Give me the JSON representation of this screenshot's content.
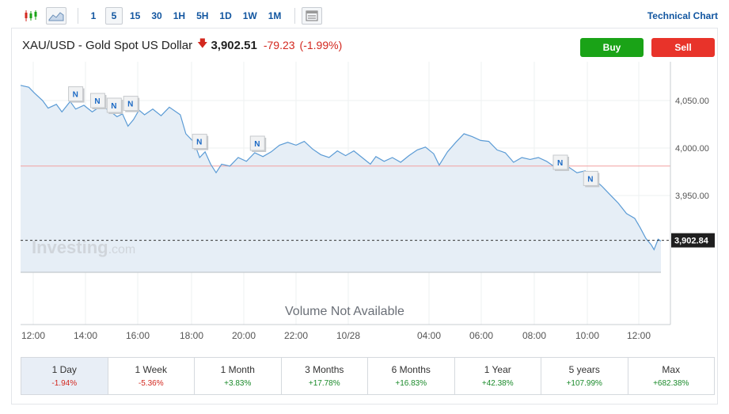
{
  "toolbar": {
    "chart_type_icons": [
      "candlestick-icon",
      "area-chart-icon"
    ],
    "intervals": [
      "1",
      "5",
      "15",
      "30",
      "1H",
      "5H",
      "1D",
      "1W",
      "1M"
    ],
    "active_interval": "5",
    "table_icon": "table-icon",
    "technical_chart_label": "Technical Chart"
  },
  "header": {
    "instrument": "XAU/USD - Gold Spot US Dollar",
    "price": "3,902.51",
    "change": "-79.23",
    "change_pct": "(-1.99%)",
    "buy_label": "Buy",
    "sell_label": "Sell"
  },
  "chart_data": {
    "type": "area",
    "y_ticks": [
      "4,050.00",
      "4,000.00",
      "3,950.00"
    ],
    "current_price_label": "3,902.84",
    "watermark": "Investing",
    "watermark_suffix": ".com",
    "news_marker_label": "N",
    "volume_label": "Volume Not Available",
    "x_ticks": [
      "12:00",
      "14:00",
      "16:00",
      "18:00",
      "20:00",
      "22:00",
      "10/28",
      "04:00",
      "06:00",
      "08:00",
      "10:00",
      "12:00"
    ],
    "ylim": [
      3880,
      4080
    ],
    "reference_line": 3981,
    "current_price": 3902.84,
    "series": [
      {
        "x": 0,
        "y": 4066
      },
      {
        "x": 0.3,
        "y": 4064
      },
      {
        "x": 0.5,
        "y": 4058
      },
      {
        "x": 0.8,
        "y": 4050
      },
      {
        "x": 1.0,
        "y": 4042
      },
      {
        "x": 1.3,
        "y": 4046
      },
      {
        "x": 1.5,
        "y": 4038
      },
      {
        "x": 1.8,
        "y": 4049
      },
      {
        "x": 2.0,
        "y": 4041
      },
      {
        "x": 2.3,
        "y": 4045
      },
      {
        "x": 2.6,
        "y": 4038
      },
      {
        "x": 2.9,
        "y": 4044
      },
      {
        "x": 3.2,
        "y": 4040
      },
      {
        "x": 3.5,
        "y": 4033
      },
      {
        "x": 3.7,
        "y": 4036
      },
      {
        "x": 3.9,
        "y": 4023
      },
      {
        "x": 4.1,
        "y": 4030
      },
      {
        "x": 4.3,
        "y": 4040
      },
      {
        "x": 4.5,
        "y": 4035
      },
      {
        "x": 4.8,
        "y": 4041
      },
      {
        "x": 5.1,
        "y": 4034
      },
      {
        "x": 5.4,
        "y": 4043
      },
      {
        "x": 5.8,
        "y": 4035
      },
      {
        "x": 6.0,
        "y": 4015
      },
      {
        "x": 6.3,
        "y": 4006
      },
      {
        "x": 6.5,
        "y": 3990
      },
      {
        "x": 6.7,
        "y": 3996
      },
      {
        "x": 6.9,
        "y": 3983
      },
      {
        "x": 7.1,
        "y": 3974
      },
      {
        "x": 7.3,
        "y": 3983
      },
      {
        "x": 7.6,
        "y": 3981
      },
      {
        "x": 7.9,
        "y": 3990
      },
      {
        "x": 8.2,
        "y": 3986
      },
      {
        "x": 8.5,
        "y": 3995
      },
      {
        "x": 8.8,
        "y": 3991
      },
      {
        "x": 9.1,
        "y": 3996
      },
      {
        "x": 9.4,
        "y": 4003
      },
      {
        "x": 9.7,
        "y": 4006
      },
      {
        "x": 10.0,
        "y": 4003
      },
      {
        "x": 10.3,
        "y": 4007
      },
      {
        "x": 10.6,
        "y": 3999
      },
      {
        "x": 10.9,
        "y": 3993
      },
      {
        "x": 11.2,
        "y": 3990
      },
      {
        "x": 11.5,
        "y": 3997
      },
      {
        "x": 11.8,
        "y": 3992
      },
      {
        "x": 12.1,
        "y": 3997
      },
      {
        "x": 12.4,
        "y": 3990
      },
      {
        "x": 12.7,
        "y": 3983
      },
      {
        "x": 12.9,
        "y": 3991
      },
      {
        "x": 13.2,
        "y": 3986
      },
      {
        "x": 13.5,
        "y": 3990
      },
      {
        "x": 13.8,
        "y": 3985
      },
      {
        "x": 14.1,
        "y": 3992
      },
      {
        "x": 14.4,
        "y": 3998
      },
      {
        "x": 14.7,
        "y": 4001
      },
      {
        "x": 15.0,
        "y": 3994
      },
      {
        "x": 15.2,
        "y": 3982
      },
      {
        "x": 15.5,
        "y": 3996
      },
      {
        "x": 15.8,
        "y": 4006
      },
      {
        "x": 16.1,
        "y": 4015
      },
      {
        "x": 16.4,
        "y": 4012
      },
      {
        "x": 16.7,
        "y": 4008
      },
      {
        "x": 17.0,
        "y": 4007
      },
      {
        "x": 17.3,
        "y": 3998
      },
      {
        "x": 17.6,
        "y": 3995
      },
      {
        "x": 17.9,
        "y": 3985
      },
      {
        "x": 18.2,
        "y": 3990
      },
      {
        "x": 18.5,
        "y": 3988
      },
      {
        "x": 18.8,
        "y": 3990
      },
      {
        "x": 19.1,
        "y": 3986
      },
      {
        "x": 19.4,
        "y": 3980
      },
      {
        "x": 19.6,
        "y": 3977
      },
      {
        "x": 19.9,
        "y": 3980
      },
      {
        "x": 20.2,
        "y": 3974
      },
      {
        "x": 20.5,
        "y": 3976
      },
      {
        "x": 20.8,
        "y": 3968
      },
      {
        "x": 21.1,
        "y": 3960
      },
      {
        "x": 21.4,
        "y": 3951
      },
      {
        "x": 21.7,
        "y": 3942
      },
      {
        "x": 22.0,
        "y": 3931
      },
      {
        "x": 22.3,
        "y": 3926
      },
      {
        "x": 22.5,
        "y": 3916
      },
      {
        "x": 22.7,
        "y": 3905
      },
      {
        "x": 22.9,
        "y": 3898
      },
      {
        "x": 23.0,
        "y": 3893
      },
      {
        "x": 23.15,
        "y": 3904
      },
      {
        "x": 23.25,
        "y": 3902
      }
    ],
    "news_markers": [
      {
        "x": 2.0,
        "y": 4057
      },
      {
        "x": 2.8,
        "y": 4050
      },
      {
        "x": 3.4,
        "y": 4045
      },
      {
        "x": 4.0,
        "y": 4047
      },
      {
        "x": 6.5,
        "y": 4007
      },
      {
        "x": 8.6,
        "y": 4005
      },
      {
        "x": 19.6,
        "y": 3985
      },
      {
        "x": 20.7,
        "y": 3968
      }
    ]
  },
  "periods": [
    {
      "label": "1 Day",
      "value": "-1.94%",
      "dir": "neg",
      "active": true
    },
    {
      "label": "1 Week",
      "value": "-5.36%",
      "dir": "neg",
      "active": false
    },
    {
      "label": "1 Month",
      "value": "+3.83%",
      "dir": "pos",
      "active": false
    },
    {
      "label": "3 Months",
      "value": "+17.78%",
      "dir": "pos",
      "active": false
    },
    {
      "label": "6 Months",
      "value": "+16.83%",
      "dir": "pos",
      "active": false
    },
    {
      "label": "1 Year",
      "value": "+42.38%",
      "dir": "pos",
      "active": false
    },
    {
      "label": "5 years",
      "value": "+107.99%",
      "dir": "pos",
      "active": false
    },
    {
      "label": "Max",
      "value": "+682.38%",
      "dir": "pos",
      "active": false
    }
  ],
  "colors": {
    "line": "#5b9bd5",
    "fill": "#e6eef6",
    "reference": "#f2a0a0",
    "brand_blue": "#1256a0",
    "buy": "#1aa317",
    "sell": "#e8332a"
  }
}
